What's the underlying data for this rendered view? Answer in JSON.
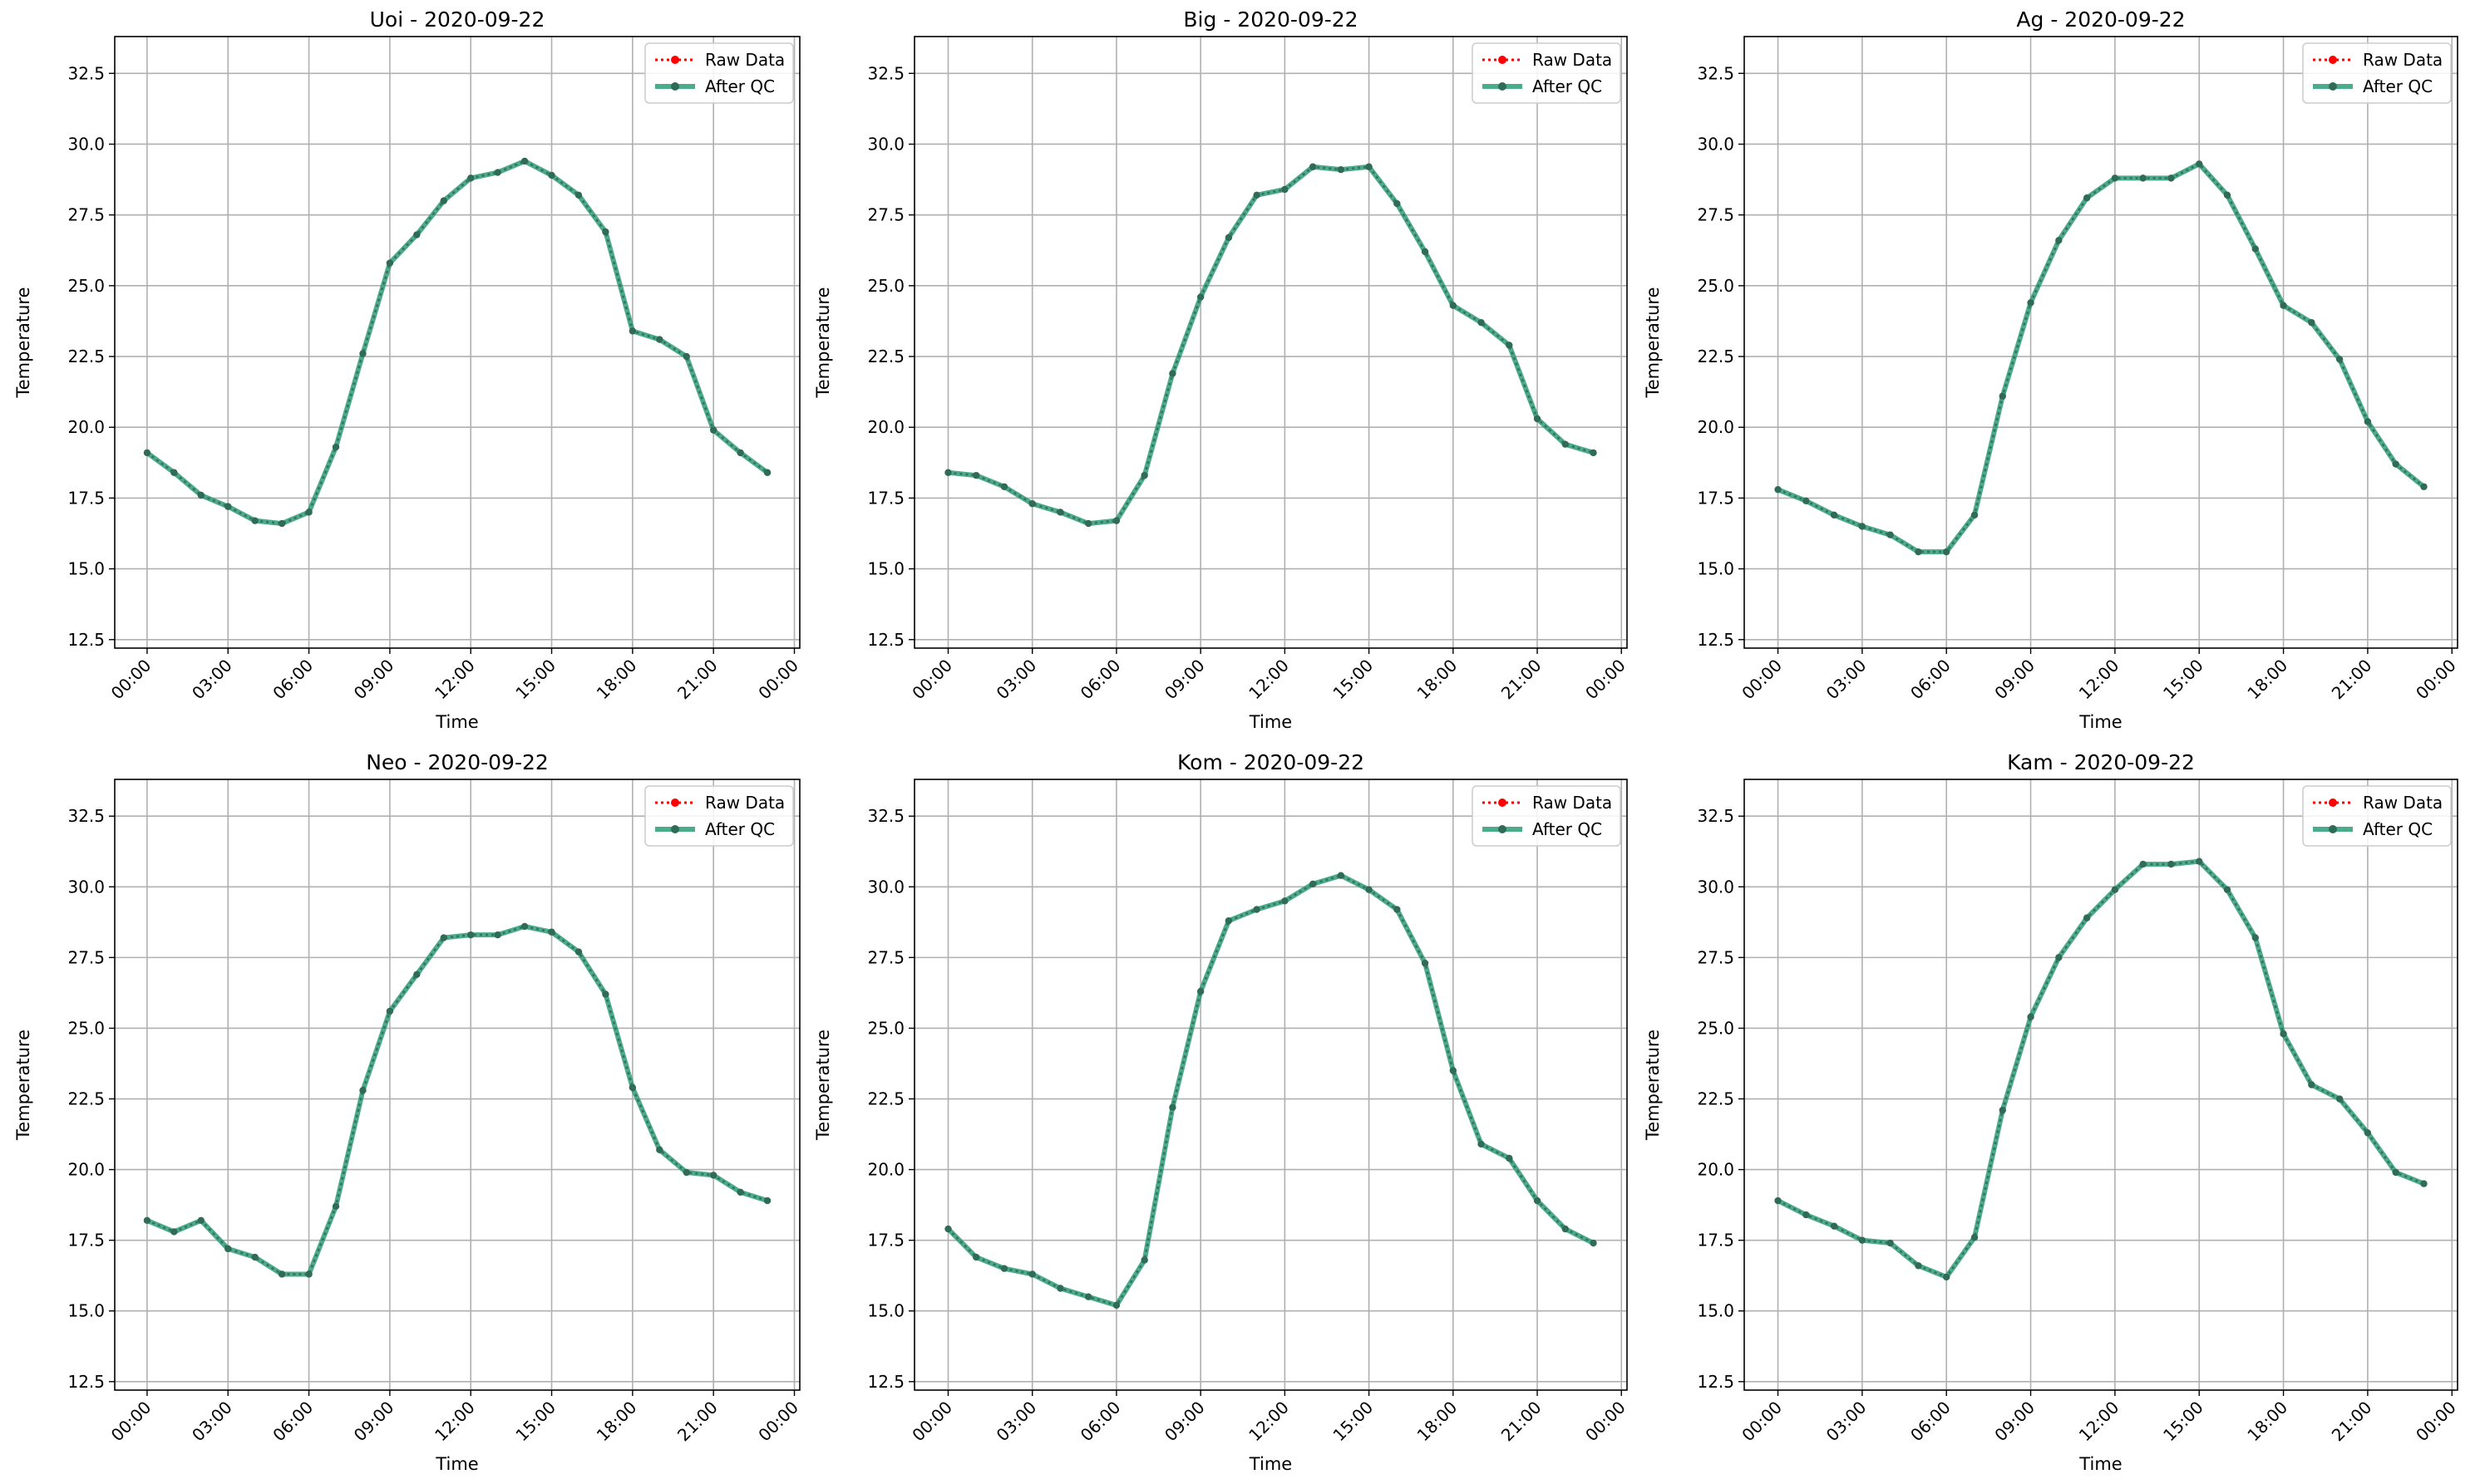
{
  "figure": {
    "background": "#ffffff"
  },
  "style": {
    "raw_color": "#ff0000",
    "qc_color": "#2a9d78",
    "qc_dark": "#2f6b57",
    "grid_color": "#b0b0b0"
  },
  "legend": {
    "raw_label": "Raw Data",
    "qc_label": "After QC",
    "placement": "top-right"
  },
  "chart_data": [
    {
      "type": "line",
      "title": "Uoi - 2020-09-22",
      "xlabel": "Time",
      "ylabel": "Temperature",
      "ylim": [
        12.2,
        33.8
      ],
      "yticks": [
        "12.5",
        "15.0",
        "17.5",
        "20.0",
        "22.5",
        "25.0",
        "27.5",
        "30.0",
        "32.5"
      ],
      "xticks": [
        "00:00",
        "03:00",
        "06:00",
        "09:00",
        "12:00",
        "15:00",
        "18:00",
        "21:00",
        "00:00"
      ],
      "grid": true,
      "series": [
        {
          "name": "Raw Data",
          "values": [
            19.1,
            18.4,
            17.6,
            17.2,
            16.7,
            16.6,
            17.0,
            19.3,
            22.6,
            25.8,
            26.8,
            28.0,
            28.8,
            29.0,
            29.4,
            28.9,
            28.2,
            26.9,
            23.4,
            23.1,
            22.5,
            19.9,
            19.1,
            18.4
          ]
        },
        {
          "name": "After QC",
          "values": [
            19.1,
            18.4,
            17.6,
            17.2,
            16.7,
            16.6,
            17.0,
            19.3,
            22.6,
            25.8,
            26.8,
            28.0,
            28.8,
            29.0,
            29.4,
            28.9,
            28.2,
            26.9,
            23.4,
            23.1,
            22.5,
            19.9,
            19.1,
            18.4
          ]
        }
      ]
    },
    {
      "type": "line",
      "title": "Big - 2020-09-22",
      "xlabel": "Time",
      "ylabel": "Temperature",
      "ylim": [
        12.2,
        33.8
      ],
      "yticks": [
        "12.5",
        "15.0",
        "17.5",
        "20.0",
        "22.5",
        "25.0",
        "27.5",
        "30.0",
        "32.5"
      ],
      "xticks": [
        "00:00",
        "03:00",
        "06:00",
        "09:00",
        "12:00",
        "15:00",
        "18:00",
        "21:00",
        "00:00"
      ],
      "grid": true,
      "series": [
        {
          "name": "Raw Data",
          "values": [
            18.4,
            18.3,
            17.9,
            17.3,
            17.0,
            16.6,
            16.7,
            18.3,
            21.9,
            24.6,
            26.7,
            28.2,
            28.4,
            29.2,
            29.1,
            29.2,
            27.9,
            26.2,
            24.3,
            23.7,
            22.9,
            20.3,
            19.4,
            19.1
          ]
        },
        {
          "name": "After QC",
          "values": [
            18.4,
            18.3,
            17.9,
            17.3,
            17.0,
            16.6,
            16.7,
            18.3,
            21.9,
            24.6,
            26.7,
            28.2,
            28.4,
            29.2,
            29.1,
            29.2,
            27.9,
            26.2,
            24.3,
            23.7,
            22.9,
            20.3,
            19.4,
            19.1
          ]
        }
      ]
    },
    {
      "type": "line",
      "title": "Ag - 2020-09-22",
      "xlabel": "Time",
      "ylabel": "Temperature",
      "ylim": [
        12.2,
        33.8
      ],
      "yticks": [
        "12.5",
        "15.0",
        "17.5",
        "20.0",
        "22.5",
        "25.0",
        "27.5",
        "30.0",
        "32.5"
      ],
      "xticks": [
        "00:00",
        "03:00",
        "06:00",
        "09:00",
        "12:00",
        "15:00",
        "18:00",
        "21:00",
        "00:00"
      ],
      "grid": true,
      "series": [
        {
          "name": "Raw Data",
          "values": [
            17.8,
            17.4,
            16.9,
            16.5,
            16.2,
            15.6,
            15.6,
            16.9,
            21.1,
            24.4,
            26.6,
            28.1,
            28.8,
            28.8,
            28.8,
            29.3,
            28.2,
            26.3,
            24.3,
            23.7,
            22.4,
            20.2,
            18.7,
            17.9
          ]
        },
        {
          "name": "After QC",
          "values": [
            17.8,
            17.4,
            16.9,
            16.5,
            16.2,
            15.6,
            15.6,
            16.9,
            21.1,
            24.4,
            26.6,
            28.1,
            28.8,
            28.8,
            28.8,
            29.3,
            28.2,
            26.3,
            24.3,
            23.7,
            22.4,
            20.2,
            18.7,
            17.9
          ]
        }
      ]
    },
    {
      "type": "line",
      "title": "Neo - 2020-09-22",
      "xlabel": "Time",
      "ylabel": "Temperature",
      "ylim": [
        12.2,
        33.8
      ],
      "yticks": [
        "12.5",
        "15.0",
        "17.5",
        "20.0",
        "22.5",
        "25.0",
        "27.5",
        "30.0",
        "32.5"
      ],
      "xticks": [
        "00:00",
        "03:00",
        "06:00",
        "09:00",
        "12:00",
        "15:00",
        "18:00",
        "21:00",
        "00:00"
      ],
      "grid": true,
      "series": [
        {
          "name": "Raw Data",
          "values": [
            18.2,
            17.8,
            18.2,
            17.2,
            16.9,
            16.3,
            16.3,
            18.7,
            22.8,
            25.6,
            26.9,
            28.2,
            28.3,
            28.3,
            28.6,
            28.4,
            27.7,
            26.2,
            22.9,
            20.7,
            19.9,
            19.8,
            19.2,
            18.9
          ]
        },
        {
          "name": "After QC",
          "values": [
            18.2,
            17.8,
            18.2,
            17.2,
            16.9,
            16.3,
            16.3,
            18.7,
            22.8,
            25.6,
            26.9,
            28.2,
            28.3,
            28.3,
            28.6,
            28.4,
            27.7,
            26.2,
            22.9,
            20.7,
            19.9,
            19.8,
            19.2,
            18.9
          ]
        }
      ]
    },
    {
      "type": "line",
      "title": "Kom - 2020-09-22",
      "xlabel": "Time",
      "ylabel": "Temperature",
      "ylim": [
        12.2,
        33.8
      ],
      "yticks": [
        "12.5",
        "15.0",
        "17.5",
        "20.0",
        "22.5",
        "25.0",
        "27.5",
        "30.0",
        "32.5"
      ],
      "xticks": [
        "00:00",
        "03:00",
        "06:00",
        "09:00",
        "12:00",
        "15:00",
        "18:00",
        "21:00",
        "00:00"
      ],
      "grid": true,
      "series": [
        {
          "name": "Raw Data",
          "values": [
            17.9,
            16.9,
            16.5,
            16.3,
            15.8,
            15.5,
            15.2,
            16.8,
            22.2,
            26.3,
            28.8,
            29.2,
            29.5,
            30.1,
            30.4,
            29.9,
            29.2,
            27.3,
            23.5,
            20.9,
            20.4,
            18.9,
            17.9,
            17.4
          ]
        },
        {
          "name": "After QC",
          "values": [
            17.9,
            16.9,
            16.5,
            16.3,
            15.8,
            15.5,
            15.2,
            16.8,
            22.2,
            26.3,
            28.8,
            29.2,
            29.5,
            30.1,
            30.4,
            29.9,
            29.2,
            27.3,
            23.5,
            20.9,
            20.4,
            18.9,
            17.9,
            17.4
          ]
        }
      ]
    },
    {
      "type": "line",
      "title": "Kam - 2020-09-22",
      "xlabel": "Time",
      "ylabel": "Temperature",
      "ylim": [
        12.2,
        33.8
      ],
      "yticks": [
        "12.5",
        "15.0",
        "17.5",
        "20.0",
        "22.5",
        "25.0",
        "27.5",
        "30.0",
        "32.5"
      ],
      "xticks": [
        "00:00",
        "03:00",
        "06:00",
        "09:00",
        "12:00",
        "15:00",
        "18:00",
        "21:00",
        "00:00"
      ],
      "grid": true,
      "series": [
        {
          "name": "Raw Data",
          "values": [
            18.9,
            18.4,
            18.0,
            17.5,
            17.4,
            16.6,
            16.2,
            17.6,
            22.1,
            25.4,
            27.5,
            28.9,
            29.9,
            30.8,
            30.8,
            30.9,
            29.9,
            28.2,
            24.8,
            23.0,
            22.5,
            21.3,
            19.9,
            19.5
          ]
        },
        {
          "name": "After QC",
          "values": [
            18.9,
            18.4,
            18.0,
            17.5,
            17.4,
            16.6,
            16.2,
            17.6,
            22.1,
            25.4,
            27.5,
            28.9,
            29.9,
            30.8,
            30.8,
            30.9,
            29.9,
            28.2,
            24.8,
            23.0,
            22.5,
            21.3,
            19.9,
            19.5
          ]
        }
      ]
    }
  ]
}
